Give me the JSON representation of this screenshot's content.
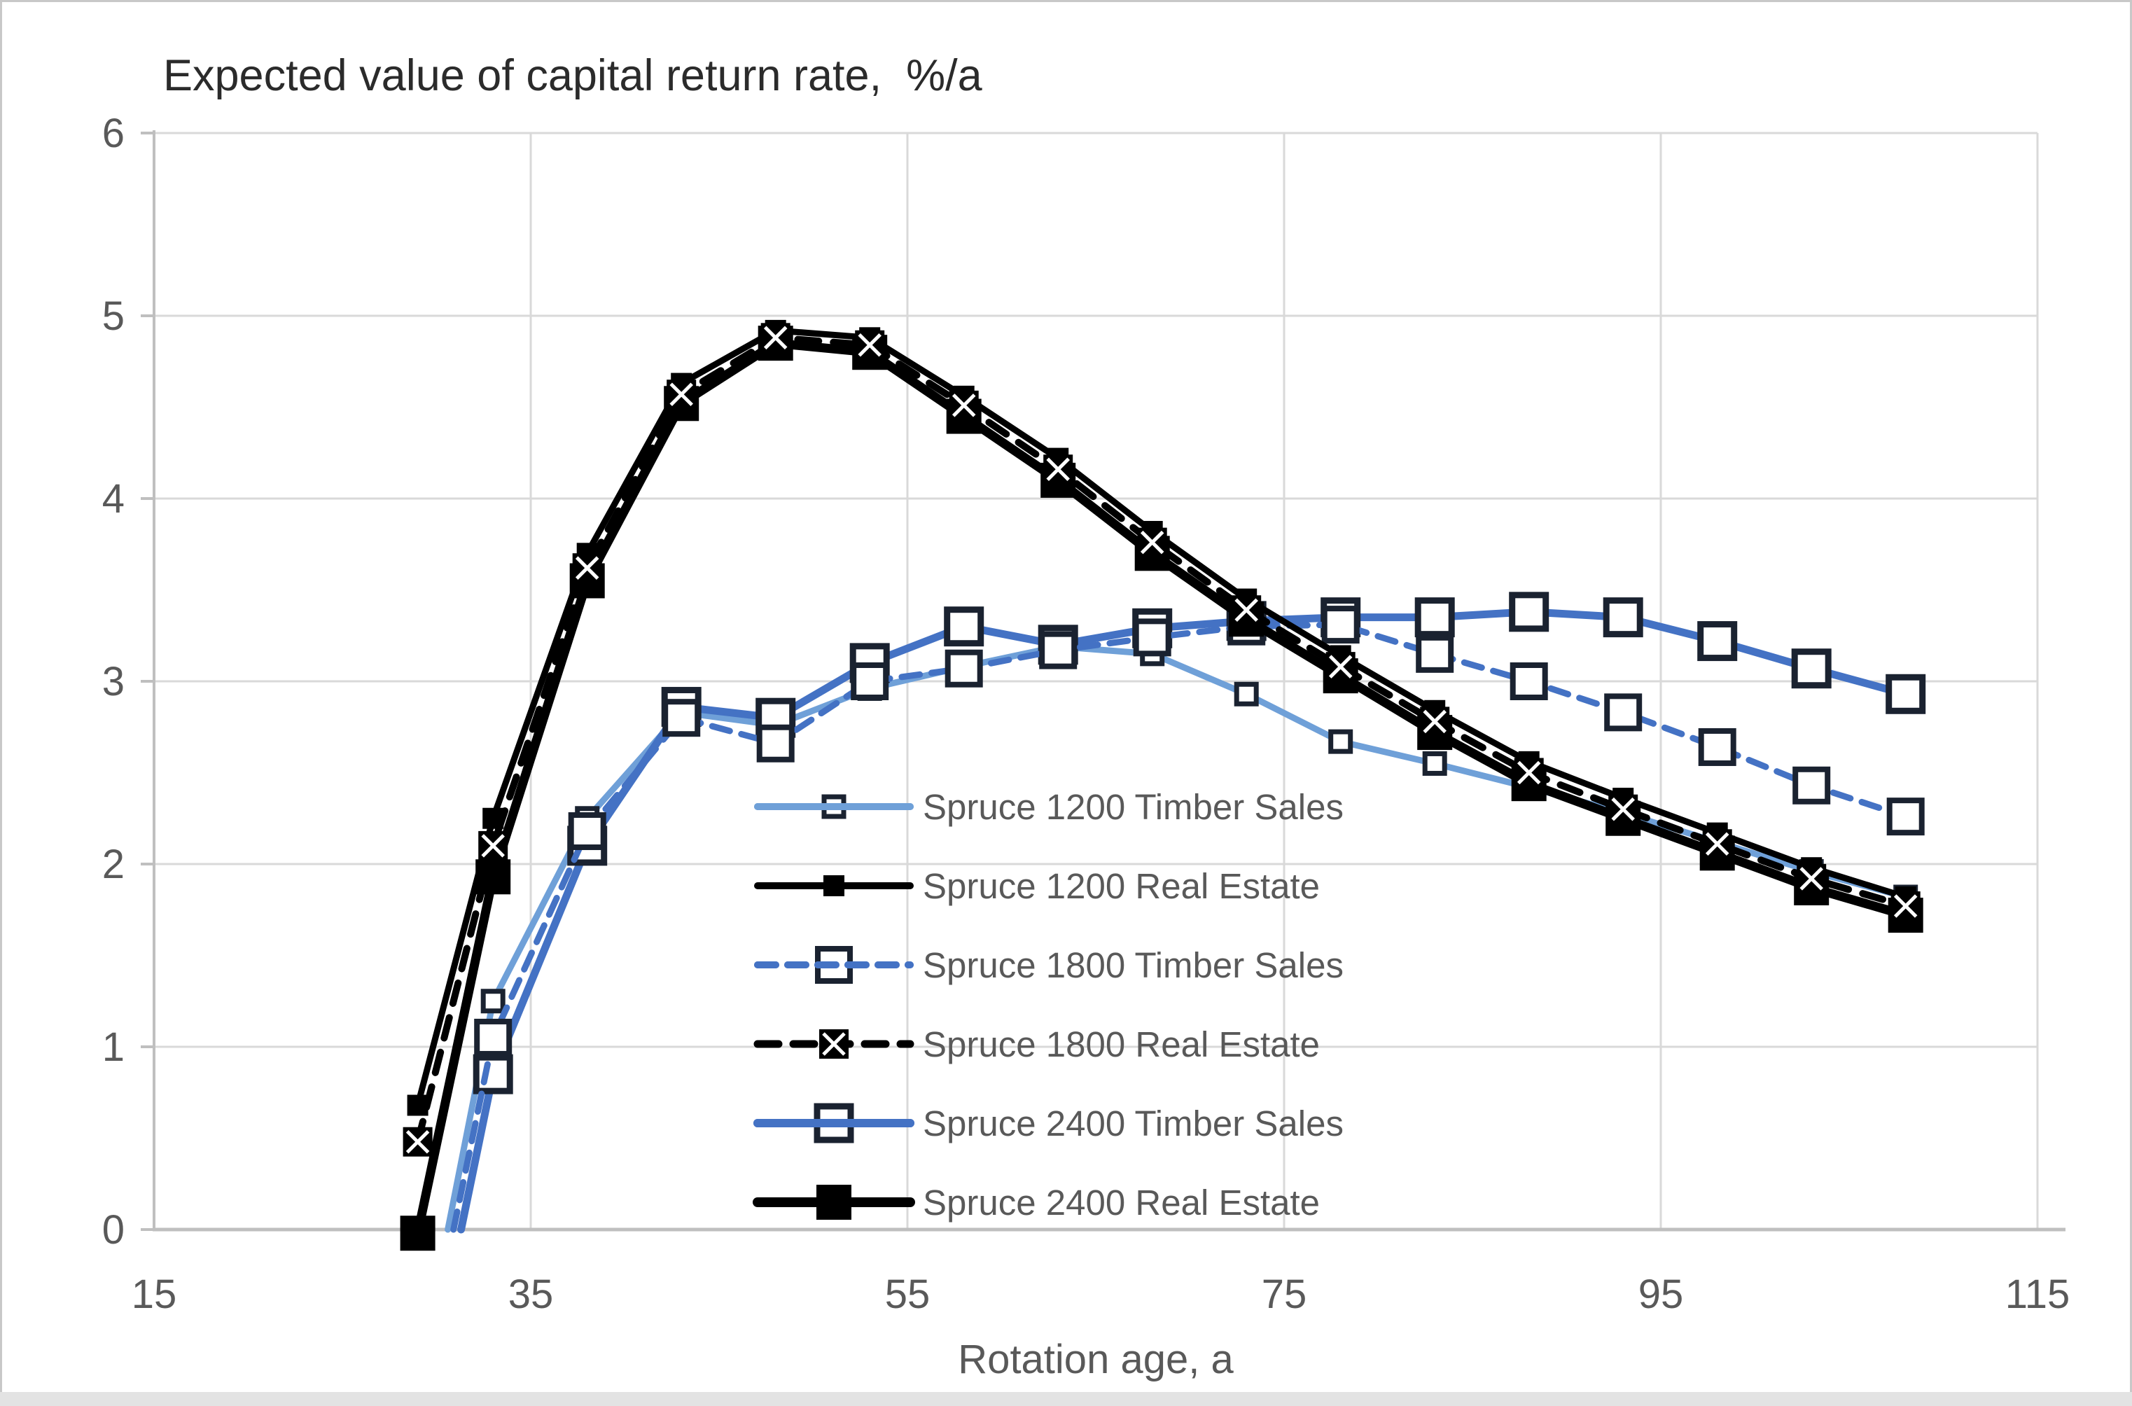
{
  "figure": {
    "title": "Expected value of capital return rate,  %/a",
    "x_axis_label": "Rotation age, a"
  },
  "colors": {
    "grid": "#D9D9D9",
    "axis": "#BFBFBF",
    "tick_text": "#595959",
    "title_text": "#2B2B2B",
    "light_blue": "#6FA0D8",
    "medium_blue": "#4472C4",
    "black": "#000000",
    "marker_border_navy": "#1A2230"
  },
  "chart_data": {
    "type": "line",
    "title": "Expected value of capital return rate, %/a",
    "xlabel": "Rotation age, a",
    "ylabel": "Expected value of capital return rate, %/a",
    "xlim": [
      15,
      115
    ],
    "ylim": [
      0,
      6
    ],
    "x_ticks": [
      15,
      35,
      55,
      75,
      95,
      115
    ],
    "y_ticks": [
      0,
      1,
      2,
      3,
      4,
      5,
      6
    ],
    "grid": true,
    "legend_position": "inside-lower-center",
    "series": [
      {
        "name": "Spruce 1200 Timber Sales",
        "color": "#6FA0D8",
        "line": "solid",
        "line_width": 9,
        "marker": "open-square",
        "marker_size": 28,
        "marker_stroke": 7,
        "marker_border": "#1A2230",
        "first_point_line_only": true,
        "points": [
          [
            30.6,
            0
          ],
          [
            33,
            1.25
          ],
          [
            38,
            2.25
          ],
          [
            43,
            2.83
          ],
          [
            48,
            2.76
          ],
          [
            53,
            2.96
          ],
          [
            58,
            3.08
          ],
          [
            63,
            3.19
          ],
          [
            68,
            3.15
          ],
          [
            73,
            2.93
          ],
          [
            78,
            2.67
          ],
          [
            83,
            2.55
          ],
          [
            88,
            2.42
          ],
          [
            93,
            2.28
          ],
          [
            98,
            2.12
          ],
          [
            103,
            1.96
          ],
          [
            108,
            1.82
          ]
        ]
      },
      {
        "name": "Spruce 2400 Timber Sales",
        "color": "#4472C4",
        "line": "solid",
        "line_width": 11,
        "marker": "open-square",
        "marker_size": 48,
        "marker_stroke": 9,
        "marker_border": "#1A2230",
        "first_point_line_only": true,
        "points": [
          [
            31.3,
            0
          ],
          [
            33,
            0.85
          ],
          [
            38,
            2.1
          ],
          [
            43,
            2.86
          ],
          [
            48,
            2.8
          ],
          [
            53,
            3.1
          ],
          [
            58,
            3.3
          ],
          [
            63,
            3.2
          ],
          [
            68,
            3.29
          ],
          [
            73,
            3.33
          ],
          [
            78,
            3.35
          ],
          [
            83,
            3.35
          ],
          [
            88,
            3.38
          ],
          [
            93,
            3.35
          ],
          [
            98,
            3.22
          ],
          [
            103,
            3.07
          ],
          [
            108,
            2.93
          ]
        ]
      },
      {
        "name": "Spruce 1800 Timber Sales",
        "color": "#4472C4",
        "line": "dashed",
        "dash": "26 17",
        "line_width": 9,
        "marker": "open-square",
        "marker_size": 46,
        "marker_stroke": 8,
        "marker_border": "#1A2230",
        "first_point_line_only": true,
        "points": [
          [
            30.9,
            0
          ],
          [
            33,
            1.05
          ],
          [
            38,
            2.18
          ],
          [
            43,
            2.8
          ],
          [
            48,
            2.66
          ],
          [
            53,
            3.0
          ],
          [
            58,
            3.07
          ],
          [
            63,
            3.17
          ],
          [
            68,
            3.24
          ],
          [
            73,
            3.3
          ],
          [
            78,
            3.31
          ],
          [
            83,
            3.15
          ],
          [
            88,
            3.0
          ],
          [
            93,
            2.83
          ],
          [
            98,
            2.64
          ],
          [
            103,
            2.43
          ],
          [
            108,
            2.26
          ]
        ]
      },
      {
        "name": "Spruce 2400 Real Estate",
        "color": "#000000",
        "line": "solid",
        "line_width": 13,
        "marker": "filled-square",
        "marker_size": 50,
        "marker_border": "#000000",
        "points": [
          [
            29,
            -0.02
          ],
          [
            33,
            1.93
          ],
          [
            38,
            3.55
          ],
          [
            43,
            4.52
          ],
          [
            48,
            4.85
          ],
          [
            53,
            4.8
          ],
          [
            58,
            4.45
          ],
          [
            63,
            4.1
          ],
          [
            68,
            3.7
          ],
          [
            73,
            3.34
          ],
          [
            78,
            3.03
          ],
          [
            83,
            2.72
          ],
          [
            88,
            2.44
          ],
          [
            93,
            2.25
          ],
          [
            98,
            2.06
          ],
          [
            103,
            1.87
          ],
          [
            108,
            1.72
          ]
        ]
      },
      {
        "name": "Spruce 1200 Real Estate",
        "color": "#000000",
        "line": "solid",
        "line_width": 9,
        "marker": "filled-square",
        "marker_size": 30,
        "marker_border": "#000000",
        "points": [
          [
            29,
            0.68
          ],
          [
            33,
            2.25
          ],
          [
            38,
            3.7
          ],
          [
            43,
            4.63
          ],
          [
            48,
            4.92
          ],
          [
            53,
            4.88
          ],
          [
            58,
            4.56
          ],
          [
            63,
            4.22
          ],
          [
            68,
            3.82
          ],
          [
            73,
            3.45
          ],
          [
            78,
            3.14
          ],
          [
            83,
            2.84
          ],
          [
            88,
            2.56
          ],
          [
            93,
            2.36
          ],
          [
            98,
            2.17
          ],
          [
            103,
            1.98
          ],
          [
            108,
            1.82
          ]
        ]
      },
      {
        "name": "Spruce 1800 Real Estate",
        "color": "#000000",
        "line": "dashed",
        "dash": "30 21",
        "line_width": 10,
        "marker": "square-x",
        "marker_size": 42,
        "marker_border": "#000000",
        "points": [
          [
            29,
            0.48
          ],
          [
            33,
            2.1
          ],
          [
            38,
            3.62
          ],
          [
            43,
            4.57
          ],
          [
            48,
            4.88
          ],
          [
            53,
            4.84
          ],
          [
            58,
            4.51
          ],
          [
            63,
            4.16
          ],
          [
            68,
            3.76
          ],
          [
            73,
            3.39
          ],
          [
            78,
            3.08
          ],
          [
            83,
            2.78
          ],
          [
            88,
            2.5
          ],
          [
            93,
            2.3
          ],
          [
            98,
            2.11
          ],
          [
            103,
            1.92
          ],
          [
            108,
            1.77
          ]
        ]
      }
    ]
  },
  "legend": {
    "entries": [
      {
        "label": "Spruce 1200 Timber Sales",
        "series": "Spruce 1200 Timber Sales"
      },
      {
        "label": "Spruce 1200 Real Estate",
        "series": "Spruce 1200 Real Estate"
      },
      {
        "label": "Spruce 1800 Timber Sales",
        "series": "Spruce 1800 Timber Sales"
      },
      {
        "label": "Spruce 1800 Real Estate",
        "series": "Spruce 1800 Real Estate"
      },
      {
        "label": "Spruce 2400 Timber Sales",
        "series": "Spruce 2400 Timber Sales"
      },
      {
        "label": "Spruce 2400 Real Estate",
        "series": "Spruce 2400 Real Estate"
      }
    ]
  }
}
